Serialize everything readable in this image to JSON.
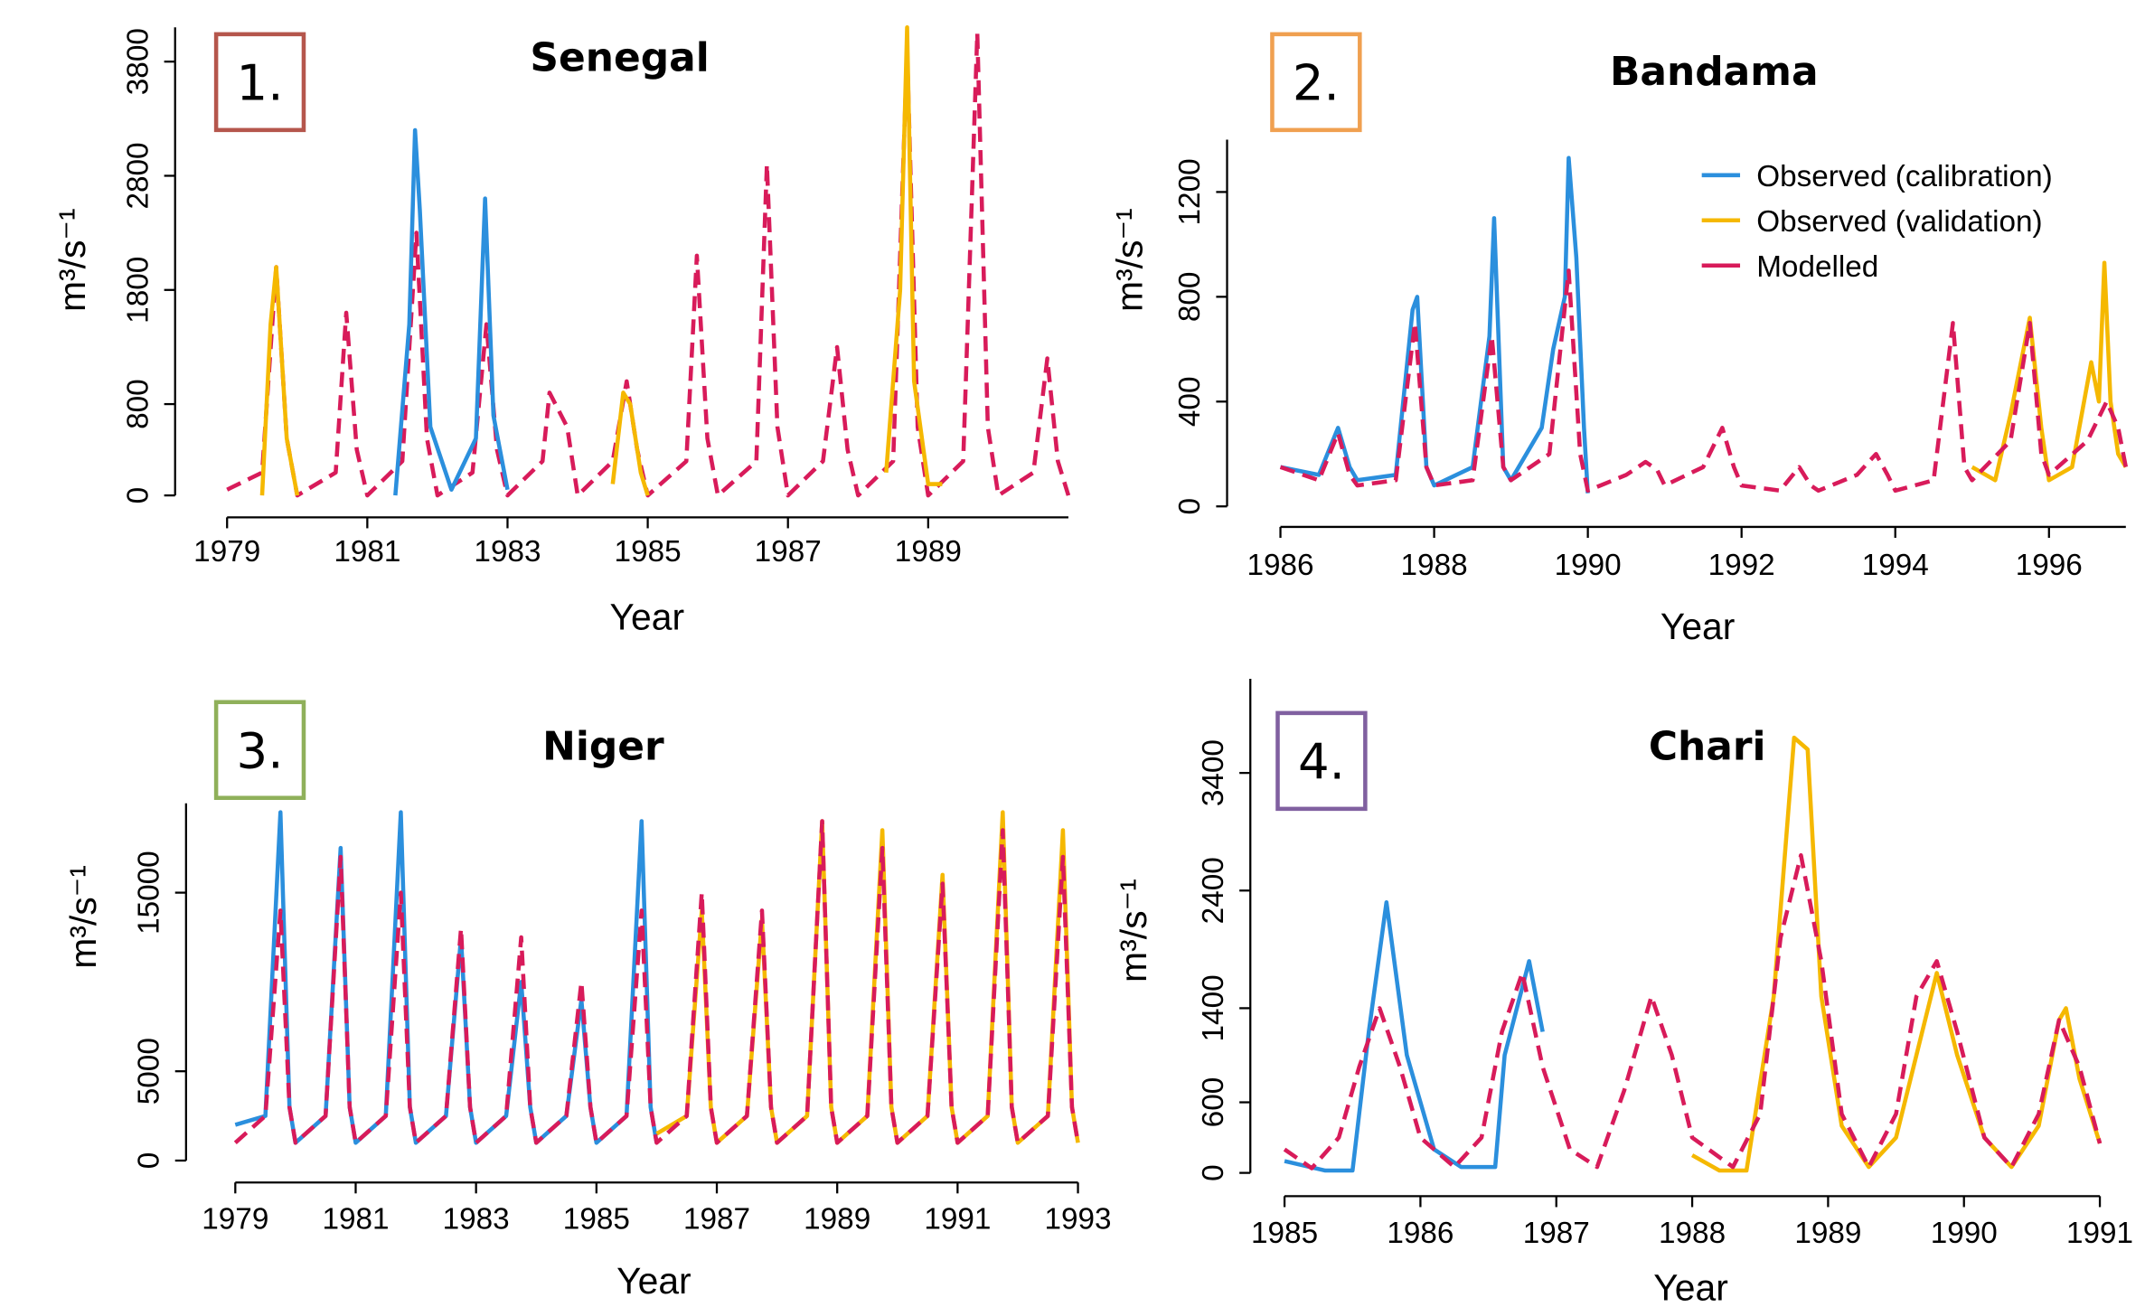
{
  "chart_data": [
    {
      "type": "line",
      "panel_label": "1.",
      "label_color": "#b5564c",
      "title": "Senegal",
      "xlabel": "Year",
      "ylabel": "m³/s⁻¹",
      "xlim": [
        1979,
        1991
      ],
      "xticks": [
        1979,
        1981,
        1983,
        1985,
        1987,
        1989
      ],
      "ylim": [
        0,
        4100
      ],
      "yticks": [
        0,
        800,
        1800,
        2800,
        3800
      ],
      "series": [
        {
          "color": "#d81b5a",
          "dashed": true,
          "x": [
            1979.0,
            1979.5,
            1979.7,
            1979.85,
            1980.0,
            1980.55,
            1980.7,
            1980.85,
            1981.0,
            1981.5,
            1981.7,
            1981.85,
            1982.0,
            1982.5,
            1982.7,
            1982.85,
            1983.0,
            1983.5,
            1983.6,
            1983.85,
            1984.0,
            1984.5,
            1984.7,
            1984.85,
            1985.0,
            1985.55,
            1985.7,
            1985.85,
            1986.0,
            1986.55,
            1986.7,
            1986.85,
            1987.0,
            1987.5,
            1987.7,
            1987.85,
            1988.0,
            1988.5,
            1988.7,
            1988.85,
            1989.0,
            1989.5,
            1989.7,
            1989.85,
            1990.0,
            1990.5,
            1990.7,
            1990.85,
            1991.0
          ],
          "values": [
            50,
            200,
            2000,
            500,
            0,
            200,
            1600,
            400,
            0,
            300,
            2300,
            500,
            0,
            200,
            1500,
            400,
            0,
            300,
            900,
            600,
            0,
            300,
            1000,
            400,
            0,
            300,
            2100,
            500,
            0,
            300,
            2900,
            600,
            0,
            300,
            1300,
            400,
            0,
            300,
            3900,
            600,
            0,
            300,
            4050,
            600,
            0,
            200,
            1200,
            300,
            0
          ]
        },
        {
          "color": "#2b8fdd",
          "dashed": false,
          "x": [
            1981.4,
            1981.6,
            1981.68,
            1981.75,
            1981.9,
            1982.2,
            1982.55,
            1982.68,
            1982.8,
            1983.0
          ],
          "values": [
            0,
            1500,
            3200,
            2500,
            600,
            50,
            500,
            2600,
            700,
            50
          ]
        },
        {
          "color": "#f5b800",
          "dashed": false,
          "x": [
            1979.5,
            1979.62,
            1979.7,
            1979.85,
            1980.0,
            1982.0,
            1984.5,
            1984.65,
            1984.75,
            1984.9,
            1985.0,
            1986.0,
            1988.4,
            1988.6,
            1988.7,
            1988.8,
            1989.0,
            1989.2
          ],
          "values": [
            0,
            1500,
            2000,
            500,
            0,
            null,
            100,
            900,
            800,
            200,
            0,
            null,
            200,
            1800,
            4100,
            1000,
            100,
            100
          ]
        }
      ]
    },
    {
      "type": "line",
      "panel_label": "2.",
      "label_color": "#f0a050",
      "title": "Bandama",
      "xlabel": "Year",
      "ylabel": "m³/s⁻¹",
      "xlim": [
        1986,
        1997
      ],
      "xticks": [
        1986,
        1988,
        1990,
        1992,
        1994,
        1996
      ],
      "ylim": [
        0,
        1400
      ],
      "yticks": [
        0,
        400,
        800,
        1200
      ],
      "legend": "upper right",
      "series": [
        {
          "name": "Observed (calibration)",
          "color": "#2b8fdd",
          "dashed": false,
          "x": [
            1986,
            1986.5,
            1986.75,
            1986.9,
            1987,
            1987.5,
            1987.72,
            1987.78,
            1987.9,
            1988,
            1988.5,
            1988.72,
            1988.78,
            1988.9,
            1989,
            1989.4,
            1989.55,
            1989.7,
            1989.75,
            1989.85,
            1989.95,
            1990
          ],
          "values": [
            150,
            120,
            300,
            150,
            100,
            120,
            750,
            800,
            150,
            80,
            150,
            650,
            1100,
            150,
            100,
            300,
            600,
            800,
            1330,
            950,
            300,
            50
          ]
        },
        {
          "name": "Observed (validation)",
          "color": "#f5b800",
          "dashed": false,
          "x": [
            1995,
            1995.3,
            1995.5,
            1995.75,
            1995.9,
            1996,
            1996.3,
            1996.55,
            1996.65,
            1996.72,
            1996.8,
            1996.9,
            1997
          ],
          "values": [
            150,
            100,
            350,
            720,
            300,
            100,
            150,
            550,
            400,
            930,
            400,
            200,
            150
          ]
        },
        {
          "name": "Modelled",
          "color": "#d81b5a",
          "dashed": true,
          "x": [
            1986,
            1986.5,
            1986.75,
            1986.9,
            1987,
            1987.5,
            1987.75,
            1987.9,
            1988,
            1988.5,
            1988.75,
            1988.9,
            1989,
            1989.5,
            1989.75,
            1989.9,
            1990,
            1990.5,
            1990.75,
            1990.9,
            1991,
            1991.5,
            1991.75,
            1991.9,
            1992,
            1992.5,
            1992.75,
            1992.9,
            1993,
            1993.5,
            1993.75,
            1993.9,
            1994,
            1994.5,
            1994.75,
            1994.9,
            1995,
            1995.5,
            1995.75,
            1995.9,
            1996,
            1996.5,
            1996.75,
            1996.9,
            1997
          ],
          "values": [
            150,
            100,
            280,
            120,
            80,
            100,
            700,
            150,
            80,
            100,
            650,
            150,
            100,
            200,
            900,
            200,
            60,
            120,
            170,
            140,
            80,
            150,
            300,
            150,
            80,
            60,
            150,
            80,
            60,
            120,
            200,
            120,
            60,
            100,
            700,
            150,
            100,
            250,
            700,
            200,
            120,
            250,
            400,
            300,
            150
          ]
        }
      ]
    },
    {
      "type": "line",
      "panel_label": "3.",
      "label_color": "#8fb05a",
      "title": "Niger",
      "xlabel": "Year",
      "ylabel": "m³/s⁻¹",
      "xlim": [
        1979,
        1993
      ],
      "xticks": [
        1979,
        1981,
        1983,
        1985,
        1987,
        1989,
        1991,
        1993
      ],
      "ylim": [
        0,
        20000
      ],
      "yticks": [
        0,
        5000,
        15000
      ],
      "series": [
        {
          "color": "#2b8fdd",
          "dashed": false,
          "x": [
            1979,
            1979.5,
            1979.75,
            1979.9,
            1980,
            1980.5,
            1980.75,
            1980.9,
            1981,
            1981.5,
            1981.75,
            1981.9,
            1982,
            1982.5,
            1982.75,
            1982.9,
            1983,
            1983.5,
            1983.75,
            1983.9,
            1984,
            1984.5,
            1984.75,
            1984.9,
            1985,
            1985.5,
            1985.75,
            1985.9,
            1986
          ],
          "values": [
            2000,
            2500,
            19500,
            3000,
            1000,
            2500,
            17500,
            3000,
            1000,
            2500,
            19500,
            3000,
            1000,
            2500,
            12500,
            3000,
            1000,
            2500,
            10000,
            3000,
            1000,
            2500,
            9000,
            3000,
            1000,
            2500,
            19000,
            3000,
            1000
          ]
        },
        {
          "color": "#f5b800",
          "dashed": false,
          "x": [
            1986,
            1986.5,
            1986.75,
            1986.9,
            1987,
            1987.5,
            1987.75,
            1987.9,
            1988,
            1988.5,
            1988.75,
            1988.9,
            1989,
            1989.5,
            1989.75,
            1989.9,
            1990,
            1990.5,
            1990.75,
            1990.9,
            1991,
            1991.5,
            1991.75,
            1991.9,
            1992,
            1992.5,
            1992.75,
            1992.9,
            1993
          ],
          "values": [
            1500,
            2500,
            14000,
            3000,
            1000,
            2500,
            13500,
            3000,
            1000,
            2500,
            19000,
            3000,
            1000,
            2500,
            18500,
            3000,
            1000,
            2500,
            16000,
            3000,
            1000,
            2500,
            19500,
            3000,
            1000,
            2500,
            18500,
            3000,
            1000
          ]
        },
        {
          "color": "#d81b5a",
          "dashed": true,
          "x": [
            1979,
            1979.5,
            1979.75,
            1979.9,
            1980,
            1980.5,
            1980.75,
            1980.9,
            1981,
            1981.5,
            1981.75,
            1981.9,
            1982,
            1982.5,
            1982.75,
            1982.9,
            1983,
            1983.5,
            1983.75,
            1983.9,
            1984,
            1984.5,
            1984.75,
            1984.9,
            1985,
            1985.5,
            1985.75,
            1985.9,
            1986,
            1986.5,
            1986.75,
            1986.9,
            1987,
            1987.5,
            1987.75,
            1987.9,
            1988,
            1988.5,
            1988.75,
            1988.9,
            1989,
            1989.5,
            1989.75,
            1989.9,
            1990,
            1990.5,
            1990.75,
            1990.9,
            1991,
            1991.5,
            1991.75,
            1991.9,
            1992,
            1992.5,
            1992.75,
            1992.9,
            1993
          ],
          "values": [
            1000,
            2500,
            14000,
            3000,
            1000,
            2500,
            17000,
            3000,
            1000,
            2500,
            15000,
            3000,
            1000,
            2500,
            13000,
            3000,
            1000,
            2500,
            12500,
            3000,
            1000,
            2500,
            10000,
            3000,
            1000,
            2500,
            14000,
            3000,
            1000,
            2500,
            15000,
            3000,
            1000,
            2500,
            14000,
            3000,
            1000,
            2500,
            19000,
            3000,
            1000,
            2500,
            17500,
            3000,
            1000,
            2500,
            15500,
            3000,
            1000,
            2500,
            18500,
            3000,
            1000,
            2500,
            17000,
            3000,
            1000
          ]
        }
      ]
    },
    {
      "type": "line",
      "panel_label": "4.",
      "label_color": "#8060a0",
      "title": "Chari",
      "xlabel": "Year",
      "ylabel": "m³/s⁻¹",
      "xlim": [
        1985,
        1991
      ],
      "xticks": [
        1985,
        1986,
        1987,
        1988,
        1989,
        1990,
        1991
      ],
      "ylim": [
        0,
        4200
      ],
      "yticks": [
        0,
        600,
        1400,
        2400,
        3400
      ],
      "series": [
        {
          "color": "#2b8fdd",
          "dashed": false,
          "x": [
            1985,
            1985.3,
            1985.5,
            1985.62,
            1985.75,
            1985.9,
            1986.1,
            1986.3,
            1986.55,
            1986.62,
            1986.8,
            1986.9
          ],
          "values": [
            100,
            20,
            20,
            1200,
            2300,
            1000,
            200,
            50,
            50,
            1000,
            1800,
            1200
          ]
        },
        {
          "color": "#f5b800",
          "dashed": false,
          "x": [
            1988,
            1988.2,
            1988.4,
            1988.6,
            1988.75,
            1988.85,
            1988.95,
            1989.1,
            1989.3,
            1989.5,
            1989.65,
            1989.8,
            1989.95,
            1990.15,
            1990.35,
            1990.55,
            1990.7,
            1990.75,
            1990.85,
            1991
          ],
          "values": [
            150,
            20,
            20,
            1500,
            3700,
            3600,
            1500,
            400,
            50,
            300,
            1000,
            1700,
            1000,
            300,
            50,
            400,
            1300,
            1400,
            800,
            250
          ]
        },
        {
          "color": "#d81b5a",
          "dashed": true,
          "x": [
            1985,
            1985.2,
            1985.4,
            1985.55,
            1985.7,
            1985.85,
            1986.0,
            1986.25,
            1986.45,
            1986.6,
            1986.75,
            1986.9,
            1987.1,
            1987.3,
            1987.5,
            1987.7,
            1987.85,
            1988.0,
            1988.3,
            1988.5,
            1988.65,
            1988.8,
            1988.95,
            1989.1,
            1989.3,
            1989.5,
            1989.65,
            1989.8,
            1989.95,
            1990.15,
            1990.35,
            1990.55,
            1990.7,
            1990.85,
            1991
          ],
          "values": [
            200,
            40,
            300,
            900,
            1400,
            900,
            300,
            50,
            300,
            1200,
            1700,
            900,
            200,
            50,
            700,
            1500,
            1000,
            300,
            50,
            500,
            2000,
            2700,
            1800,
            500,
            50,
            500,
            1500,
            1800,
            1200,
            300,
            50,
            500,
            1300,
            900,
            250
          ]
        }
      ]
    }
  ]
}
